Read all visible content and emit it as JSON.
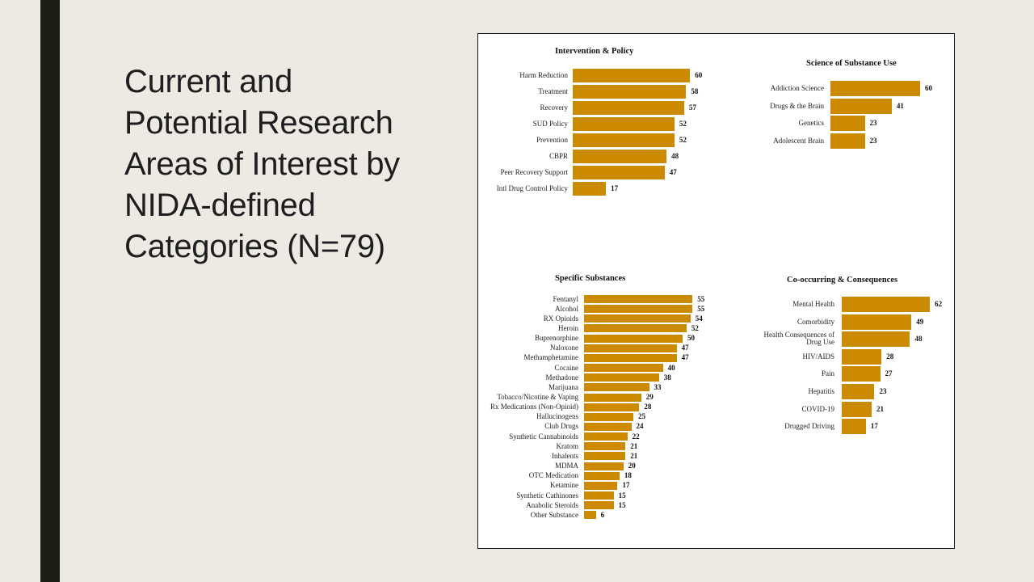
{
  "slide": {
    "title_lines": [
      "Current and",
      "Potential Research",
      "Areas of Interest by",
      "NIDA-defined",
      "Categories (N=79)"
    ],
    "accent_color": "#1C1E14",
    "background_color": "#EDEAE4",
    "bar_color": "#CC8A00"
  },
  "chart_data": [
    {
      "type": "bar",
      "orientation": "horizontal",
      "title": "Intervention & Policy",
      "categories": [
        "Harm Reduction",
        "Treatment",
        "Recovery",
        "SUD Policy",
        "Prevention",
        "CBPR",
        "Peer Recovery Support",
        "Intl Drug Control Policy"
      ],
      "values": [
        60,
        58,
        57,
        52,
        52,
        48,
        47,
        17
      ],
      "xlabel": "",
      "ylabel": "",
      "grid": false,
      "legend": null
    },
    {
      "type": "bar",
      "orientation": "horizontal",
      "title": "Science of Substance Use",
      "categories": [
        "Addiction Science",
        "Drugs & the Brain",
        "Genetics",
        "Adolescent Brain"
      ],
      "values": [
        60,
        41,
        23,
        23
      ],
      "xlabel": "",
      "ylabel": "",
      "grid": false,
      "legend": null
    },
    {
      "type": "bar",
      "orientation": "horizontal",
      "title": "Specific Substances",
      "categories": [
        "Fentanyl",
        "Alcohol",
        "RX Opioids",
        "Heroin",
        "Buprenorphine",
        "Naloxone",
        "Methamphetamine",
        "Cocaine",
        "Methadone",
        "Marijuana",
        "Tobacco/Nicotine & Vaping",
        "Rx Medications (Non-Opioid)",
        "Hallucinogens",
        "Club Drugs",
        "Synthetic Cannabinoids",
        "Kratom",
        "Inhalents",
        "MDMA",
        "OTC Medication",
        "Ketamine",
        "Synthetic Cathinones",
        "Anabolic Steroids",
        "Other Substance"
      ],
      "values": [
        55,
        55,
        54,
        52,
        50,
        47,
        47,
        40,
        38,
        33,
        29,
        28,
        25,
        24,
        22,
        21,
        21,
        20,
        18,
        17,
        15,
        15,
        6
      ],
      "xlabel": "",
      "ylabel": "",
      "grid": false,
      "legend": null
    },
    {
      "type": "bar",
      "orientation": "horizontal",
      "title": "Co-occurring  & Consequences",
      "categories": [
        "Mental Health",
        "Comorbidity",
        "Health Consequences of Drug Use",
        "HIV/AIDS",
        "Pain",
        "Hepatitis",
        "COVID-19",
        "Drugged Driving"
      ],
      "values": [
        62,
        49,
        48,
        28,
        27,
        23,
        21,
        17
      ],
      "xlabel": "",
      "ylabel": "",
      "grid": false,
      "legend": null
    }
  ]
}
